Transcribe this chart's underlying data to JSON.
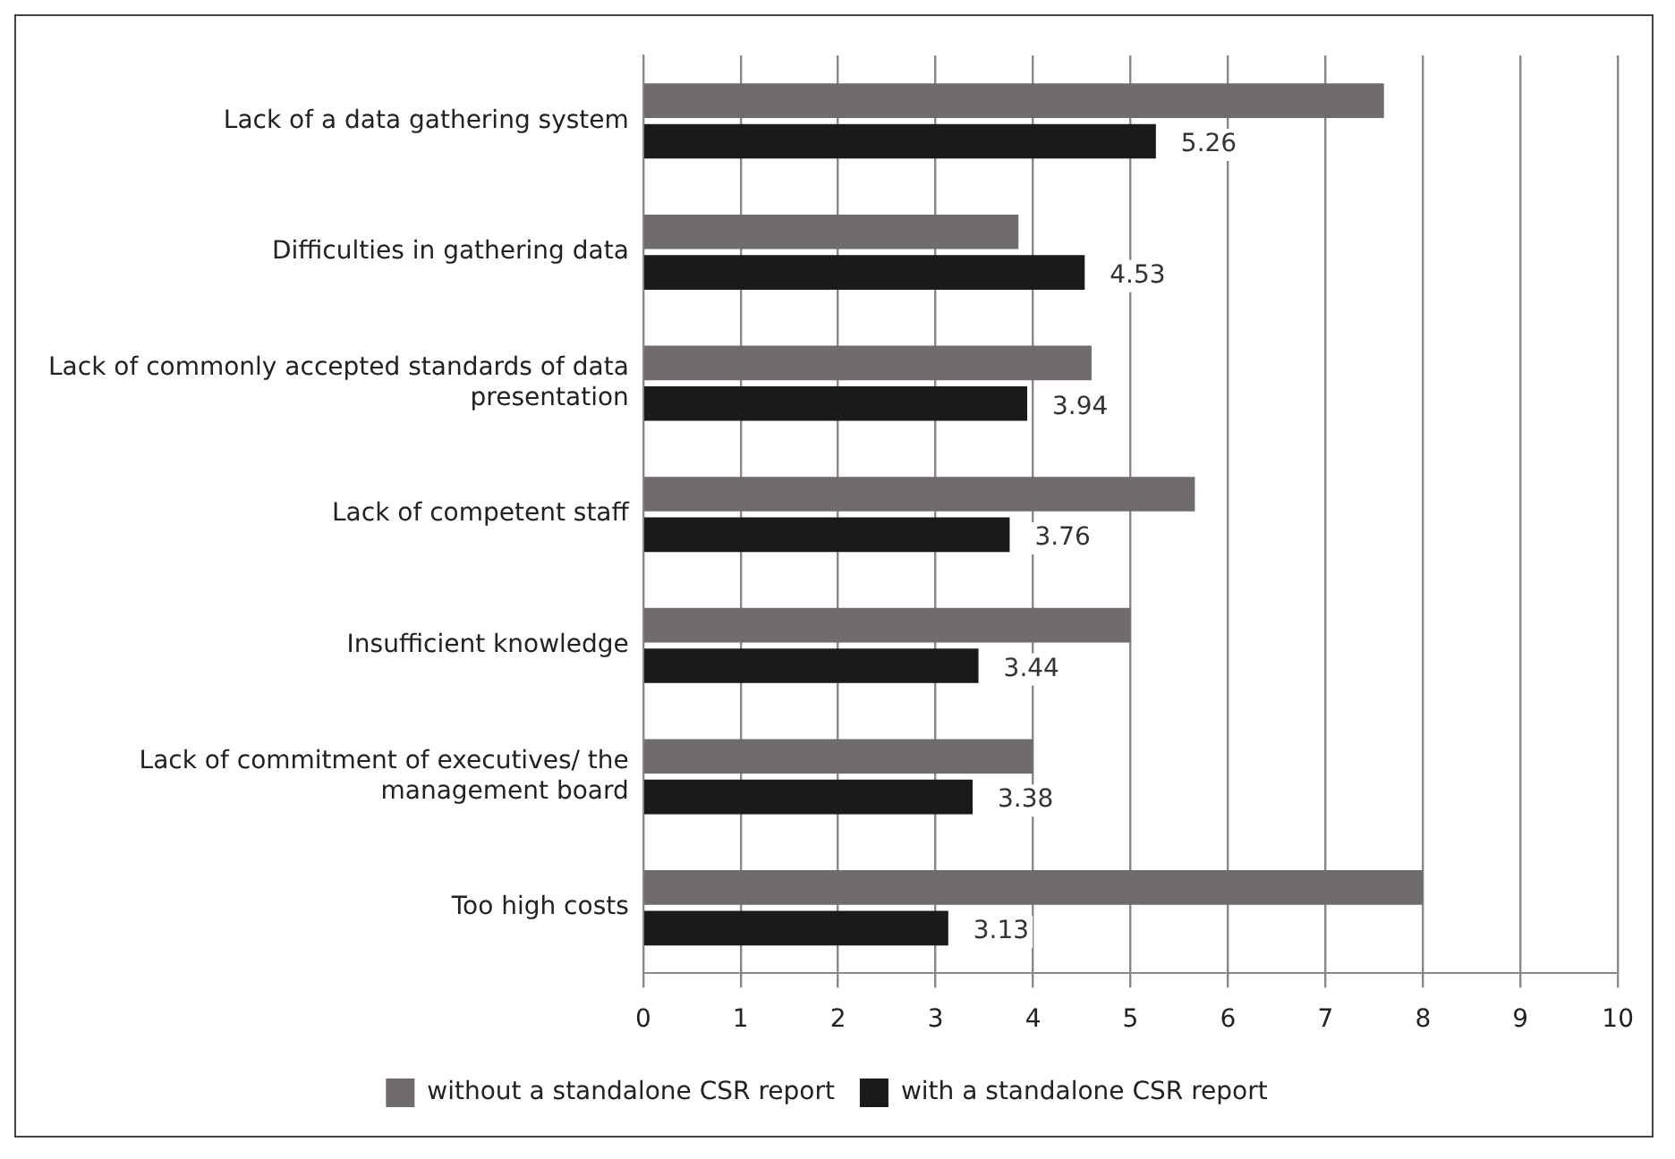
{
  "chart_data": {
    "type": "bar",
    "orientation": "horizontal",
    "categories": [
      "Lack of a data gathering system",
      "Difficulties in gathering data",
      "Lack of commonly accepted standards of data presentation",
      "Lack of competent staff",
      "Insufficient knowledge",
      "Lack of commitment of executives/ the management board",
      "Too high costs"
    ],
    "series": [
      {
        "name": "without a standalone CSR report",
        "color": "#716b6b",
        "values": [
          7.6,
          3.85,
          4.6,
          5.66,
          5.0,
          4.0,
          8.0
        ]
      },
      {
        "name": "with a standalone CSR report",
        "color": "#1a1a1a",
        "values": [
          5.26,
          4.53,
          3.94,
          3.76,
          3.44,
          3.38,
          3.13
        ],
        "value_labels": [
          "5.26",
          "4.53",
          "3.94",
          "3.76",
          "3.44",
          "3.38",
          "3.13"
        ]
      }
    ],
    "xlim": [
      0,
      10
    ],
    "xticks": [
      0,
      1,
      2,
      3,
      4,
      5,
      6,
      7,
      8,
      9,
      10
    ],
    "grid": "x",
    "legend": "bottom"
  }
}
